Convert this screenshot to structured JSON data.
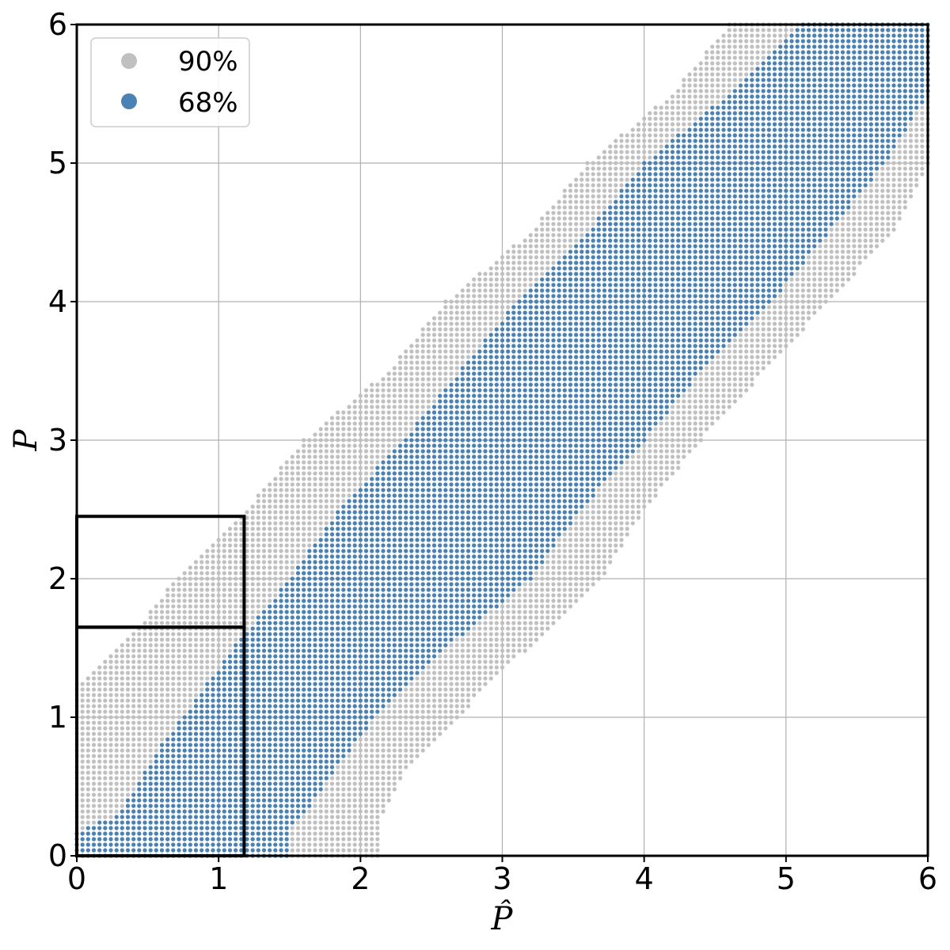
{
  "chart_data": {
    "type": "scatter",
    "xlabel": "P̂",
    "ylabel": "P",
    "xlim": [
      0,
      6
    ],
    "ylim": [
      0,
      6
    ],
    "xticks": [
      "0",
      "1",
      "2",
      "3",
      "4",
      "5",
      "6"
    ],
    "yticks": [
      "0",
      "1",
      "2",
      "3",
      "4",
      "5",
      "6"
    ],
    "grid": true,
    "legend_position": "top-left",
    "grid_step": 0.04,
    "series": [
      {
        "name": "90%",
        "color": "#c0c0c0",
        "description": "confidence belt: x range per P value",
        "belt": [
          {
            "p": 0.0,
            "x_min": 0.0,
            "x_max": 2.15
          },
          {
            "p": 0.3,
            "x_min": 0.0,
            "x_max": 2.15
          },
          {
            "p": 0.6,
            "x_min": 0.0,
            "x_max": 2.3
          },
          {
            "p": 1.0,
            "x_min": 0.0,
            "x_max": 2.7
          },
          {
            "p": 1.25,
            "x_min": 0.0,
            "x_max": 2.9
          },
          {
            "p": 1.3,
            "x_min": 0.1,
            "x_max": 2.95
          },
          {
            "p": 1.6,
            "x_min": 0.4,
            "x_max": 3.3
          },
          {
            "p": 2.0,
            "x_min": 0.7,
            "x_max": 3.7
          },
          {
            "p": 2.5,
            "x_min": 1.2,
            "x_max": 4.0
          },
          {
            "p": 3.0,
            "x_min": 1.6,
            "x_max": 4.4
          },
          {
            "p": 3.5,
            "x_min": 2.2,
            "x_max": 4.85
          },
          {
            "p": 4.0,
            "x_min": 2.6,
            "x_max": 5.3
          },
          {
            "p": 4.5,
            "x_min": 3.2,
            "x_max": 5.75
          },
          {
            "p": 5.0,
            "x_min": 3.6,
            "x_max": 6.0
          },
          {
            "p": 5.5,
            "x_min": 4.2,
            "x_max": 6.0
          },
          {
            "p": 6.0,
            "x_min": 4.6,
            "x_max": 6.0
          }
        ]
      },
      {
        "name": "68%",
        "color": "#4a82b4",
        "description": "confidence belt: x range per P value",
        "belt": [
          {
            "p": 0.0,
            "x_min": 0.0,
            "x_max": 1.48
          },
          {
            "p": 0.18,
            "x_min": 0.0,
            "x_max": 1.5
          },
          {
            "p": 0.3,
            "x_min": 0.3,
            "x_max": 1.6
          },
          {
            "p": 0.8,
            "x_min": 0.6,
            "x_max": 1.95
          },
          {
            "p": 1.0,
            "x_min": 0.75,
            "x_max": 2.1
          },
          {
            "p": 1.5,
            "x_min": 1.1,
            "x_max": 2.6
          },
          {
            "p": 2.0,
            "x_min": 1.5,
            "x_max": 3.2
          },
          {
            "p": 2.5,
            "x_min": 1.85,
            "x_max": 3.55
          },
          {
            "p": 3.0,
            "x_min": 2.3,
            "x_max": 4.0
          },
          {
            "p": 3.5,
            "x_min": 2.7,
            "x_max": 4.4
          },
          {
            "p": 4.0,
            "x_min": 3.1,
            "x_max": 4.9
          },
          {
            "p": 4.5,
            "x_min": 3.6,
            "x_max": 5.3
          },
          {
            "p": 5.0,
            "x_min": 4.0,
            "x_max": 5.7
          },
          {
            "p": 5.5,
            "x_min": 4.6,
            "x_max": 6.0
          },
          {
            "p": 6.0,
            "x_min": 5.1,
            "x_max": 6.0
          }
        ]
      }
    ],
    "annotations": [
      {
        "type": "box",
        "x_range": [
          0,
          1.18
        ],
        "y_range": [
          0,
          1.65
        ]
      },
      {
        "type": "box",
        "x_range": [
          0,
          1.18
        ],
        "y_range": [
          1.65,
          2.45
        ]
      }
    ]
  }
}
